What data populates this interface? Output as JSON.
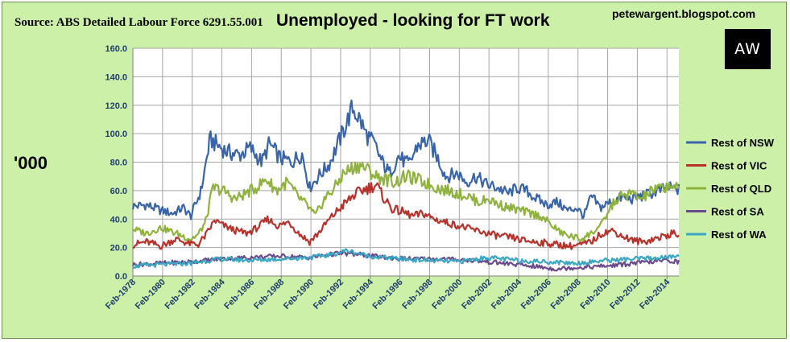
{
  "header": {
    "source": "Source: ABS Detailed Labour Force 6291.55.001",
    "title": "Unemployed - looking for FT work",
    "blog": "petewargent.blogspot.com",
    "logo_text": "AW"
  },
  "colors": {
    "background": "#ccf0a8",
    "rest_of_nsw": "#3a64a8",
    "rest_of_vic": "#b8322c",
    "rest_of_qld": "#8fb23c",
    "rest_of_sa": "#6b4a8c",
    "rest_of_wa": "#3aa7c4"
  },
  "chart_data": {
    "type": "line",
    "ylabel": "'000",
    "ylim": [
      0,
      160
    ],
    "yticks": [
      "0.0",
      "20.0",
      "40.0",
      "60.0",
      "80.0",
      "100.0",
      "120.0",
      "140.0",
      "160.0"
    ],
    "xlim": [
      1978.1,
      2014.9
    ],
    "xticks": [
      "Feb-1978",
      "Feb-1980",
      "Feb-1982",
      "Feb-1984",
      "Feb-1986",
      "Feb-1988",
      "Feb-1990",
      "Feb-1992",
      "Feb-1994",
      "Feb-1996",
      "Feb-1998",
      "Feb-2000",
      "Feb-2002",
      "Feb-2004",
      "Feb-2006",
      "Feb-2008",
      "Feb-2010",
      "Feb-2012",
      "Feb-2014"
    ],
    "grid": true,
    "legend_position": "right",
    "series": [
      {
        "name": "Rest of NSW",
        "color_key": "rest_of_nsw",
        "x": [
          1978.1,
          1979,
          1980,
          1980.8,
          1981.5,
          1982,
          1982.7,
          1983.3,
          1983.8,
          1984.5,
          1985.3,
          1986,
          1986.8,
          1987.3,
          1988,
          1988.8,
          1989.5,
          1990,
          1990.6,
          1991.3,
          1991.8,
          1992.3,
          1992.9,
          1993.4,
          1993.8,
          1994.4,
          1994.9,
          1995.4,
          1996,
          1996.7,
          1997.3,
          1998,
          1998.6,
          1999.2,
          2000,
          2000.6,
          2001.2,
          2002,
          2002.7,
          2003.4,
          2004,
          2004.6,
          2005.2,
          2006,
          2006.7,
          2007.4,
          2008,
          2008.5,
          2009,
          2009.6,
          2010.3,
          2011,
          2011.7,
          2012.4,
          2013,
          2013.6,
          2014.2,
          2014.8
        ],
        "values": [
          49,
          50,
          46,
          44,
          48,
          42,
          60,
          96,
          92,
          87,
          85,
          90,
          80,
          93,
          83,
          80,
          86,
          62,
          70,
          78,
          90,
          102,
          118,
          110,
          100,
          92,
          80,
          72,
          84,
          78,
          92,
          95,
          84,
          70,
          72,
          66,
          70,
          64,
          62,
          58,
          62,
          60,
          55,
          50,
          52,
          46,
          48,
          42,
          56,
          48,
          52,
          55,
          54,
          56,
          58,
          60,
          62,
          61
        ]
      },
      {
        "name": "Rest of VIC",
        "color_key": "rest_of_vic",
        "x": [
          1978.1,
          1979,
          1980,
          1981,
          1981.8,
          1982.5,
          1983.1,
          1983.6,
          1984.3,
          1985,
          1985.8,
          1986.5,
          1987.2,
          1987.9,
          1988.6,
          1989.3,
          1990,
          1990.6,
          1991.2,
          1991.8,
          1992.3,
          1992.9,
          1993.5,
          1994,
          1994.5,
          1995,
          1995.6,
          1996.3,
          1997,
          1997.7,
          1998.4,
          1999.1,
          1999.8,
          2000.5,
          2001.2,
          2002,
          2002.8,
          2003.6,
          2004.4,
          2005.2,
          2006,
          2006.8,
          2007.6,
          2008.3,
          2009,
          2009.7,
          2010.4,
          2011.1,
          2011.8,
          2012.5,
          2013.2,
          2013.9,
          2014.5,
          2014.9
        ],
        "values": [
          22,
          24,
          21,
          26,
          23,
          22,
          30,
          39,
          35,
          32,
          30,
          34,
          40,
          35,
          38,
          30,
          24,
          30,
          38,
          45,
          50,
          56,
          60,
          62,
          64,
          55,
          47,
          45,
          42,
          44,
          40,
          38,
          36,
          34,
          32,
          30,
          28,
          27,
          25,
          24,
          23,
          22,
          21,
          22,
          24,
          30,
          32,
          28,
          25,
          24,
          26,
          28,
          30,
          29
        ]
      },
      {
        "name": "Rest of QLD",
        "color_key": "rest_of_qld",
        "x": [
          1978.1,
          1979,
          1980,
          1981,
          1982,
          1982.5,
          1983,
          1983.5,
          1984.2,
          1985,
          1985.7,
          1986.4,
          1987.1,
          1987.8,
          1988.5,
          1989.2,
          1989.8,
          1990.4,
          1991,
          1991.7,
          1992.3,
          1992.9,
          1993.4,
          1993.9,
          1994.5,
          1995.1,
          1995.8,
          1996.5,
          1997.2,
          1997.9,
          1998.6,
          1999.3,
          2000,
          2000.7,
          2001.4,
          2002.1,
          2002.8,
          2003.5,
          2004.2,
          2004.9,
          2005.6,
          2006.3,
          2007,
          2007.6,
          2008.3,
          2009,
          2009.7,
          2010.4,
          2011,
          2011.7,
          2012.4,
          2013.1,
          2013.8,
          2014.4,
          2014.9
        ],
        "values": [
          33,
          30,
          34,
          30,
          26,
          29,
          38,
          62,
          60,
          54,
          58,
          62,
          68,
          60,
          66,
          56,
          50,
          42,
          54,
          62,
          72,
          76,
          78,
          75,
          70,
          68,
          66,
          70,
          68,
          65,
          62,
          60,
          58,
          56,
          52,
          54,
          50,
          48,
          46,
          44,
          42,
          36,
          30,
          28,
          26,
          30,
          36,
          50,
          56,
          58,
          54,
          60,
          62,
          64,
          60
        ]
      },
      {
        "name": "Rest of SA",
        "color_key": "rest_of_sa",
        "x": [
          1978.1,
          1980,
          1982,
          1984,
          1986,
          1988,
          1990,
          1992,
          1993.5,
          1995,
          1997,
          1999,
          2001,
          2003,
          2005,
          2006.5,
          2008,
          2010,
          2012,
          2014,
          2014.9
        ],
        "values": [
          8,
          9,
          10,
          12,
          13,
          14,
          13,
          16,
          15,
          13,
          12,
          12,
          11,
          9,
          7,
          5,
          6,
          7,
          9,
          11,
          10
        ]
      },
      {
        "name": "Rest of WA",
        "color_key": "rest_of_wa",
        "x": [
          1978.1,
          1980,
          1982,
          1984,
          1986,
          1988,
          1990,
          1991.5,
          1992.5,
          1994,
          1996,
          1998,
          2000,
          2002,
          2004,
          2006,
          2008,
          2010,
          2012,
          2014,
          2014.9
        ],
        "values": [
          7,
          8,
          9,
          12,
          11,
          12,
          13,
          15,
          18,
          14,
          12,
          11,
          10,
          13,
          11,
          10,
          9,
          11,
          12,
          13,
          14
        ]
      }
    ]
  }
}
